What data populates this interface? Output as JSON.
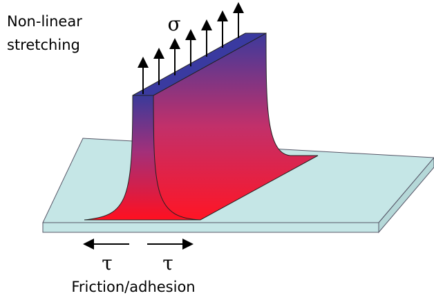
{
  "labels": {
    "stretching": [
      "Non-linear",
      "stretching"
    ],
    "sigma": "σ",
    "tau_left": "τ",
    "tau_right": "τ",
    "caption": "Friction/adhesion"
  }
}
